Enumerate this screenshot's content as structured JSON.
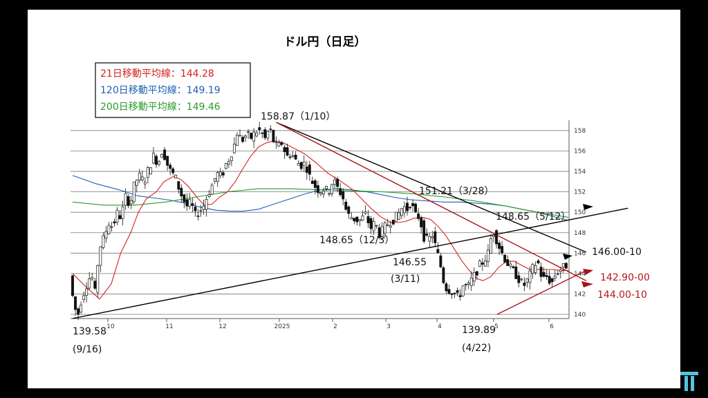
{
  "chart_data": {
    "type": "candlestick",
    "title": "ドル円（日足）",
    "ylim": [
      140,
      159
    ],
    "y_ticks": [
      "140",
      "142",
      "144",
      "146",
      "148",
      "150",
      "152",
      "154",
      "156",
      "158"
    ],
    "x_month_labels": [
      "10",
      "11",
      "12",
      "2025",
      "2",
      "3",
      "4",
      "5",
      "6"
    ],
    "legend": [
      {
        "label": "21日移動平均線：144.28",
        "color": "#d42020"
      },
      {
        "label": "120日移動平均線：149.19",
        "color": "#1d5fb0"
      },
      {
        "label": "200日移動平均線：149.46",
        "color": "#2a9a2a"
      }
    ],
    "annotations": [
      {
        "id": "high-jan",
        "text": "158.87（1/10）"
      },
      {
        "id": "mar28",
        "text": "151.21（3/28）"
      },
      {
        "id": "may12",
        "text": "148.65（5/12）"
      },
      {
        "id": "dec3",
        "text": "148.65（12/3）"
      },
      {
        "id": "mar11-value",
        "text": "146.55"
      },
      {
        "id": "mar11-date",
        "text": "(3/11)"
      },
      {
        "id": "low-apr",
        "text": "139.89"
      },
      {
        "id": "low-apr-date",
        "text": "(4/22)"
      },
      {
        "id": "low-sep",
        "text": "139.58"
      },
      {
        "id": "low-sep-date",
        "text": "(9/16)"
      },
      {
        "id": "target-upper",
        "text": "146.00-10"
      },
      {
        "id": "target-mid",
        "text": "142.90-00"
      },
      {
        "id": "target-lower",
        "text": "144.00-10"
      }
    ],
    "price_path": [
      [
        0,
        143.8
      ],
      [
        5,
        141
      ],
      [
        10,
        139.8
      ],
      [
        15,
        141.5
      ],
      [
        22,
        143
      ],
      [
        28,
        144
      ],
      [
        32,
        141.8
      ],
      [
        38,
        146.5
      ],
      [
        44,
        147.5
      ],
      [
        50,
        149
      ],
      [
        56,
        148.5
      ],
      [
        60,
        150
      ],
      [
        66,
        149.5
      ],
      [
        72,
        151.5
      ],
      [
        78,
        150.8
      ],
      [
        84,
        153
      ],
      [
        90,
        153.5
      ],
      [
        96,
        153
      ],
      [
        102,
        154.3
      ],
      [
        108,
        155.5
      ],
      [
        114,
        154.8
      ],
      [
        120,
        156.3
      ],
      [
        124,
        155
      ],
      [
        130,
        154
      ],
      [
        136,
        153.5
      ],
      [
        140,
        152.5
      ],
      [
        146,
        151.3
      ],
      [
        152,
        150.5
      ],
      [
        156,
        151
      ],
      [
        162,
        149.7
      ],
      [
        166,
        150
      ],
      [
        172,
        150.5
      ],
      [
        178,
        151.7
      ],
      [
        184,
        152.7
      ],
      [
        190,
        153.8
      ],
      [
        196,
        153.5
      ],
      [
        202,
        154.8
      ],
      [
        206,
        155.3
      ],
      [
        212,
        156.5
      ],
      [
        216,
        157.8
      ],
      [
        222,
        157
      ],
      [
        228,
        157.6
      ],
      [
        234,
        157.3
      ],
      [
        240,
        157.9
      ],
      [
        246,
        158
      ],
      [
        252,
        157.2
      ],
      [
        258,
        158.3
      ],
      [
        262,
        157.1
      ],
      [
        268,
        156.3
      ],
      [
        274,
        156.8
      ],
      [
        280,
        155.4
      ],
      [
        286,
        155.8
      ],
      [
        292,
        155
      ],
      [
        298,
        154.6
      ],
      [
        304,
        154.8
      ],
      [
        310,
        153.4
      ],
      [
        316,
        152.6
      ],
      [
        322,
        152.1
      ],
      [
        328,
        152.3
      ],
      [
        334,
        152
      ],
      [
        340,
        153.2
      ],
      [
        346,
        152.3
      ],
      [
        352,
        151.6
      ],
      [
        358,
        149.8
      ],
      [
        364,
        149.5
      ],
      [
        370,
        149.2
      ],
      [
        376,
        149.3
      ],
      [
        382,
        149.8
      ],
      [
        388,
        148.4
      ],
      [
        394,
        149
      ],
      [
        400,
        147.8
      ],
      [
        406,
        148.5
      ],
      [
        412,
        149
      ],
      [
        418,
        149.3
      ],
      [
        424,
        149.8
      ],
      [
        430,
        150.6
      ],
      [
        436,
        150.3
      ],
      [
        440,
        151
      ],
      [
        446,
        149.7
      ],
      [
        452,
        149.5
      ],
      [
        456,
        147.7
      ],
      [
        462,
        147.2
      ],
      [
        468,
        147.8
      ],
      [
        474,
        146.1
      ],
      [
        478,
        145
      ],
      [
        484,
        142.7
      ],
      [
        490,
        142.4
      ],
      [
        496,
        142.1
      ],
      [
        502,
        141.6
      ],
      [
        508,
        142.9
      ],
      [
        514,
        142.6
      ],
      [
        518,
        143.3
      ],
      [
        524,
        144
      ],
      [
        528,
        144.7
      ],
      [
        534,
        145.2
      ],
      [
        540,
        146
      ],
      [
        546,
        148.3
      ],
      [
        550,
        147.5
      ],
      [
        556,
        146.3
      ],
      [
        562,
        145.4
      ],
      [
        568,
        144.6
      ],
      [
        574,
        144.1
      ],
      [
        580,
        143.4
      ],
      [
        586,
        142.8
      ],
      [
        592,
        143.5
      ],
      [
        598,
        144.6
      ],
      [
        604,
        145.2
      ],
      [
        610,
        143.4
      ],
      [
        616,
        143.7
      ],
      [
        622,
        143
      ],
      [
        626,
        143.8
      ],
      [
        632,
        144.4
      ],
      [
        636,
        144.5
      ],
      [
        640,
        144.8
      ]
    ],
    "ma21": [
      [
        0,
        144
      ],
      [
        20,
        142.5
      ],
      [
        35,
        141.5
      ],
      [
        50,
        143
      ],
      [
        62,
        146
      ],
      [
        75,
        148
      ],
      [
        85,
        150
      ],
      [
        95,
        151.3
      ],
      [
        108,
        152
      ],
      [
        118,
        153
      ],
      [
        130,
        153.5
      ],
      [
        140,
        153.2
      ],
      [
        150,
        152.5
      ],
      [
        160,
        151.5
      ],
      [
        170,
        150.7
      ],
      [
        180,
        150.8
      ],
      [
        190,
        151.5
      ],
      [
        200,
        152
      ],
      [
        210,
        153
      ],
      [
        220,
        154.3
      ],
      [
        230,
        155.5
      ],
      [
        240,
        156.4
      ],
      [
        250,
        156.8
      ],
      [
        260,
        157
      ],
      [
        272,
        156.8
      ],
      [
        285,
        156.3
      ],
      [
        300,
        155.7
      ],
      [
        315,
        154.8
      ],
      [
        330,
        153.8
      ],
      [
        345,
        153.1
      ],
      [
        360,
        152.3
      ],
      [
        372,
        151.4
      ],
      [
        385,
        150.4
      ],
      [
        397,
        149.6
      ],
      [
        410,
        149
      ],
      [
        420,
        149
      ],
      [
        430,
        149.1
      ],
      [
        440,
        149.4
      ],
      [
        452,
        149.5
      ],
      [
        462,
        149.3
      ],
      [
        472,
        148.6
      ],
      [
        482,
        147.7
      ],
      [
        492,
        146.5
      ],
      [
        502,
        145.3
      ],
      [
        512,
        144.3
      ],
      [
        522,
        143.5
      ],
      [
        530,
        143.3
      ],
      [
        540,
        143.7
      ],
      [
        550,
        144.6
      ],
      [
        560,
        145.2
      ],
      [
        570,
        145.2
      ],
      [
        580,
        144.8
      ],
      [
        590,
        144.4
      ],
      [
        600,
        144.4
      ],
      [
        610,
        144.4
      ],
      [
        620,
        144.4
      ],
      [
        630,
        144.3
      ],
      [
        640,
        144.3
      ]
    ],
    "ma120": [
      [
        0,
        153.6
      ],
      [
        30,
        152.8
      ],
      [
        60,
        152.2
      ],
      [
        85,
        151.6
      ],
      [
        105,
        151.4
      ],
      [
        125,
        151.2
      ],
      [
        145,
        150.9
      ],
      [
        165,
        150.5
      ],
      [
        185,
        150.2
      ],
      [
        205,
        150.1
      ],
      [
        220,
        150.1
      ],
      [
        240,
        150.3
      ],
      [
        260,
        150.8
      ],
      [
        280,
        151.3
      ],
      [
        300,
        151.8
      ],
      [
        320,
        152.2
      ],
      [
        340,
        152.3
      ],
      [
        360,
        152.2
      ],
      [
        380,
        152
      ],
      [
        400,
        151.7
      ],
      [
        420,
        151.4
      ],
      [
        440,
        151.2
      ],
      [
        460,
        151.1
      ],
      [
        480,
        151
      ],
      [
        500,
        151
      ],
      [
        520,
        150.9
      ],
      [
        540,
        150.8
      ],
      [
        560,
        150.6
      ],
      [
        580,
        150.3
      ],
      [
        600,
        150
      ],
      [
        620,
        149.6
      ],
      [
        640,
        149.2
      ]
    ],
    "ma200": [
      [
        0,
        151
      ],
      [
        40,
        150.7
      ],
      [
        80,
        150.7
      ],
      [
        120,
        151
      ],
      [
        160,
        151.5
      ],
      [
        200,
        152
      ],
      [
        240,
        152.3
      ],
      [
        280,
        152.3
      ],
      [
        320,
        152.2
      ],
      [
        360,
        152.1
      ],
      [
        400,
        152
      ],
      [
        440,
        151.8
      ],
      [
        480,
        151.5
      ],
      [
        520,
        151.1
      ],
      [
        560,
        150.6
      ],
      [
        600,
        150
      ],
      [
        640,
        149.5
      ]
    ],
    "trendlines": [
      {
        "from": [
          263,
          158.8
        ],
        "to": [
          663,
          146.1
        ],
        "color": "#000000"
      },
      {
        "from": [
          263,
          158.8
        ],
        "to": [
          663,
          143.3
        ],
        "color": "#a8141b"
      },
      {
        "from": [
          0,
          139.6
        ],
        "to": [
          717,
          150.4
        ],
        "color": "#000000"
      },
      {
        "from": [
          548,
          140.0
        ],
        "to": [
          663,
          144.3
        ],
        "color": "#a8141b"
      }
    ]
  }
}
